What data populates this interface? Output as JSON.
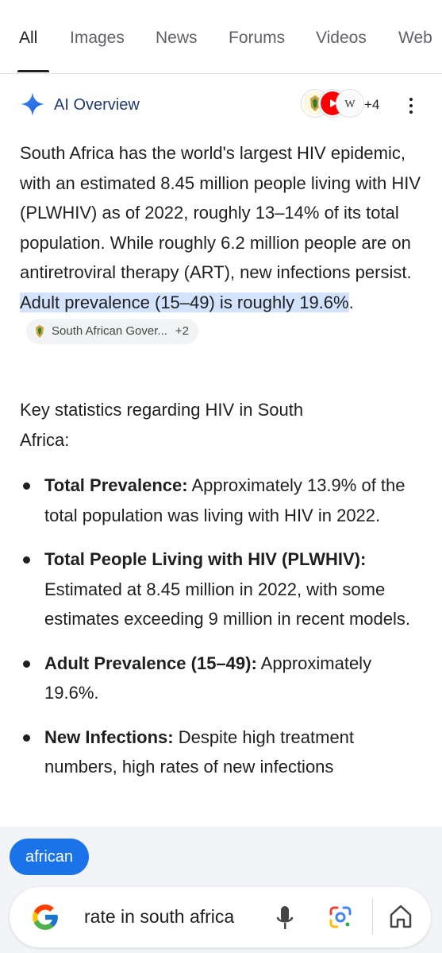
{
  "tabs": [
    {
      "label": "All",
      "active": true
    },
    {
      "label": "Images"
    },
    {
      "label": "News"
    },
    {
      "label": "Forums"
    },
    {
      "label": "Videos"
    },
    {
      "label": "Web"
    }
  ],
  "ai_overview": {
    "title": "AI Overview",
    "source_count": "+4",
    "intro": {
      "text": "South Africa has the world's largest HIV epidemic, with an estimated 8.45 million people living with HIV (PLWHIV) as of 2022, roughly 13–14% of its total population. While roughly 6.2 million people are on antiretroviral therapy (ART), new infections persist. ",
      "highlight": "Adult prevalence (15–49) is roughly 19.6%",
      "tail": "."
    },
    "source_chip": {
      "label": "South African Gover...",
      "more": "+2"
    },
    "key_stats_heading": "Key statistics regarding HIV in South Africa:",
    "bullets": [
      {
        "title": "Total Prevalence:",
        "text": " Approximately 13.9% of the total population was living with HIV in 2022."
      },
      {
        "title": "Total People Living with HIV (PLWHIV):",
        "text": " Estimated at 8.45 million in 2022, with some estimates exceeding 9 million in recent models."
      },
      {
        "title": "Adult Prevalence (15–49):",
        "text": " Approximately 19.6%."
      },
      {
        "title": "New Infections:",
        "text": " Despite high treatment numbers, high rates of new infections"
      }
    ]
  },
  "suggestion_chip": "african",
  "search_bar": {
    "query": "rate in south africa"
  },
  "colors": {
    "accent": "#1a73e8",
    "highlight": "#d3e3fd",
    "ai_title": "#1f3a6e"
  }
}
